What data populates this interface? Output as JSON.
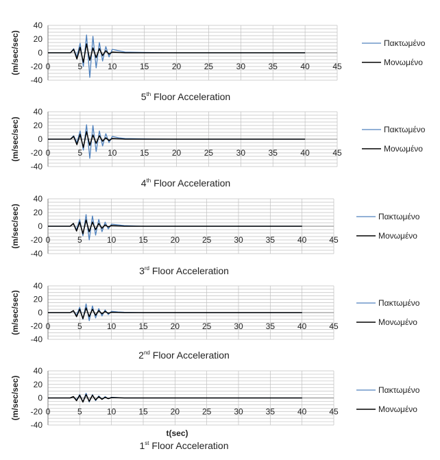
{
  "colors": {
    "fixed": "#4F81BD",
    "isolated": "#000000",
    "grid": "#BFBFBF",
    "axis": "#808080"
  },
  "chart_data": [
    {
      "type": "line",
      "title": "5th Floor Acceleration",
      "title_main": "Floor Acceleration",
      "ordinal_number": "5",
      "ordinal_suffix": "th",
      "ylabel": "(m/sec/sec)",
      "xlabel": "",
      "xlim": [
        0,
        45
      ],
      "ylim": [
        -40,
        40
      ],
      "x_ticks": [
        "0",
        "5",
        "10",
        "15",
        "20",
        "25",
        "30",
        "35",
        "40",
        "45"
      ],
      "y_ticks": [
        "40",
        "20",
        "0",
        "-20",
        "-40"
      ],
      "grid": true,
      "legend_position": "right",
      "series": [
        {
          "name": "Πακτωμένο",
          "x": [
            0,
            3.5,
            4,
            4.5,
            5,
            5.5,
            6,
            6.5,
            7,
            7.5,
            8,
            8.5,
            9,
            9.5,
            10,
            11,
            12,
            15,
            20,
            25,
            30,
            35,
            40
          ],
          "y": [
            0,
            0,
            6,
            -6,
            14,
            -20,
            26,
            -36,
            24,
            -22,
            15,
            -12,
            9,
            -6,
            5,
            3,
            1,
            0.5,
            0,
            0,
            0,
            0,
            0
          ]
        },
        {
          "name": "Μονωμένο",
          "x": [
            0,
            3.5,
            4,
            4.5,
            5,
            5.5,
            6,
            6.5,
            7,
            7.5,
            8,
            8.5,
            9,
            9.5,
            10,
            12,
            15,
            20,
            25,
            30,
            35,
            40
          ],
          "y": [
            0,
            0,
            5,
            -9,
            8,
            -14,
            13,
            -11,
            7,
            -7,
            6,
            -4,
            3,
            -2,
            1,
            0,
            0,
            0,
            0,
            0,
            0,
            0
          ]
        }
      ]
    },
    {
      "type": "line",
      "title": "4th Floor Acceleration",
      "title_main": "Floor Acceleration",
      "ordinal_number": "4",
      "ordinal_suffix": "th",
      "ylabel": "(m/sec/sec)",
      "xlabel": "",
      "xlim": [
        0,
        45
      ],
      "ylim": [
        -40,
        40
      ],
      "x_ticks": [
        "0",
        "5",
        "10",
        "15",
        "20",
        "25",
        "30",
        "35",
        "40",
        "45"
      ],
      "y_ticks": [
        "40",
        "20",
        "0",
        "-20",
        "-40"
      ],
      "grid": true,
      "legend_position": "right",
      "series": [
        {
          "name": "Πακτωμένο",
          "x": [
            0,
            3.5,
            4,
            4.5,
            5,
            5.5,
            6,
            6.5,
            7,
            7.5,
            8,
            8.5,
            9,
            9.5,
            10,
            11,
            12,
            15,
            20,
            25,
            30,
            35,
            40
          ],
          "y": [
            0,
            0,
            5,
            -5,
            12,
            -16,
            21,
            -28,
            20,
            -18,
            12,
            -10,
            8,
            -5,
            4,
            2,
            1,
            0.5,
            0,
            0,
            0,
            0,
            0
          ]
        },
        {
          "name": "Μονωμένο",
          "x": [
            0,
            3.5,
            4,
            4.5,
            5,
            5.5,
            6,
            6.5,
            7,
            7.5,
            8,
            8.5,
            9,
            9.5,
            10,
            12,
            15,
            20,
            25,
            30,
            35,
            40
          ],
          "y": [
            0,
            0,
            4,
            -8,
            7,
            -12,
            11,
            -9,
            6,
            -6,
            5,
            -3,
            2,
            -2,
            1,
            0,
            0,
            0,
            0,
            0,
            0,
            0
          ]
        }
      ]
    },
    {
      "type": "line",
      "title": "3rd Floor Acceleration",
      "title_main": "Floor Acceleration",
      "ordinal_number": "3",
      "ordinal_suffix": "rd",
      "ylabel": "(m/sec/sec)",
      "xlabel": "",
      "xlim": [
        0,
        45
      ],
      "ylim": [
        -40,
        40
      ],
      "x_ticks": [
        "0",
        "5",
        "10",
        "15",
        "20",
        "25",
        "30",
        "35",
        "40",
        "45"
      ],
      "y_ticks": [
        "40",
        "20",
        "0",
        "-20",
        "-40"
      ],
      "grid": true,
      "legend_position": "right",
      "series": [
        {
          "name": "Πακτωμένο",
          "x": [
            0,
            3.5,
            4,
            4.5,
            5,
            5.5,
            6,
            6.5,
            7,
            7.5,
            8,
            8.5,
            9,
            9.5,
            10,
            11,
            12,
            15,
            20,
            25,
            30,
            35,
            40
          ],
          "y": [
            0,
            0,
            4,
            -5,
            10,
            -14,
            17,
            -20,
            15,
            -13,
            10,
            -8,
            6,
            -4,
            3,
            2,
            1,
            0,
            0,
            0,
            0,
            0,
            0
          ]
        },
        {
          "name": "Μονωμένο",
          "x": [
            0,
            3.5,
            4,
            4.5,
            5,
            5.5,
            6,
            6.5,
            7,
            7.5,
            8,
            8.5,
            9,
            9.5,
            10,
            12,
            15,
            20,
            25,
            30,
            35,
            40
          ],
          "y": [
            0,
            0,
            4,
            -7,
            6,
            -11,
            9,
            -8,
            6,
            -5,
            4,
            -3,
            2,
            -1,
            1,
            0,
            0,
            0,
            0,
            0,
            0,
            0
          ]
        }
      ]
    },
    {
      "type": "line",
      "title": "2nd Floor Acceleration",
      "title_main": "Floor Acceleration",
      "ordinal_number": "2",
      "ordinal_suffix": "nd",
      "ylabel": "(m/sec/sec)",
      "xlabel": "",
      "xlim": [
        0,
        45
      ],
      "ylim": [
        -40,
        40
      ],
      "x_ticks": [
        "0",
        "5",
        "10",
        "15",
        "20",
        "25",
        "30",
        "35",
        "40",
        "45"
      ],
      "y_ticks": [
        "40",
        "20",
        "0",
        "-20",
        "-40"
      ],
      "grid": true,
      "legend_position": "right",
      "series": [
        {
          "name": "Πακτωμένο",
          "x": [
            0,
            3.5,
            4,
            4.5,
            5,
            5.5,
            6,
            6.5,
            7,
            7.5,
            8,
            8.5,
            9,
            9.5,
            10,
            11,
            12,
            15,
            20,
            25,
            30,
            35,
            40
          ],
          "y": [
            0,
            0,
            3,
            -4,
            8,
            -10,
            13,
            -12,
            10,
            -8,
            6,
            -5,
            4,
            -3,
            2,
            1,
            0.5,
            0,
            0,
            0,
            0,
            0,
            0
          ]
        },
        {
          "name": "Μονωμένο",
          "x": [
            0,
            3.5,
            4,
            4.5,
            5,
            5.5,
            6,
            6.5,
            7,
            7.5,
            8,
            8.5,
            9,
            9.5,
            10,
            12,
            15,
            20,
            25,
            30,
            35,
            40
          ],
          "y": [
            0,
            0,
            3,
            -6,
            5,
            -9,
            7,
            -6,
            5,
            -4,
            3,
            -2,
            2,
            -1,
            0.5,
            0,
            0,
            0,
            0,
            0,
            0,
            0
          ]
        }
      ]
    },
    {
      "type": "line",
      "title": "1st Floor Acceleration",
      "title_main": "Floor Acceleration",
      "ordinal_number": "1",
      "ordinal_suffix": "st",
      "ylabel": "(m/sec/sec)",
      "xlabel": "t(sec)",
      "xlim": [
        0,
        45
      ],
      "ylim": [
        -40,
        40
      ],
      "x_ticks": [
        "0",
        "5",
        "10",
        "15",
        "20",
        "25",
        "30",
        "35",
        "40",
        "45"
      ],
      "y_ticks": [
        "40",
        "20",
        "0",
        "-20",
        "-40"
      ],
      "grid": true,
      "legend_position": "right",
      "series": [
        {
          "name": "Πακτωμένο",
          "x": [
            0,
            3.5,
            4,
            4.5,
            5,
            5.5,
            6,
            6.5,
            7,
            7.5,
            8,
            8.5,
            9,
            9.5,
            10,
            12,
            15,
            20,
            25,
            30,
            35,
            40
          ],
          "y": [
            0,
            0,
            2,
            -3,
            5,
            -6,
            7,
            -6,
            5,
            -4,
            3,
            -2,
            2,
            -1,
            1,
            0,
            0,
            0,
            0,
            0,
            0,
            0
          ]
        },
        {
          "name": "Μονωμένο",
          "x": [
            0,
            3.5,
            4,
            4.5,
            5,
            5.5,
            6,
            6.5,
            7,
            7.5,
            8,
            8.5,
            9,
            9.5,
            10,
            12,
            15,
            20,
            25,
            30,
            35,
            40
          ],
          "y": [
            0,
            0,
            2,
            -4,
            4,
            -6,
            5,
            -5,
            4,
            -3,
            2,
            -2,
            1,
            -1,
            0.5,
            0,
            0,
            0,
            0,
            0,
            0,
            0
          ]
        }
      ]
    }
  ]
}
